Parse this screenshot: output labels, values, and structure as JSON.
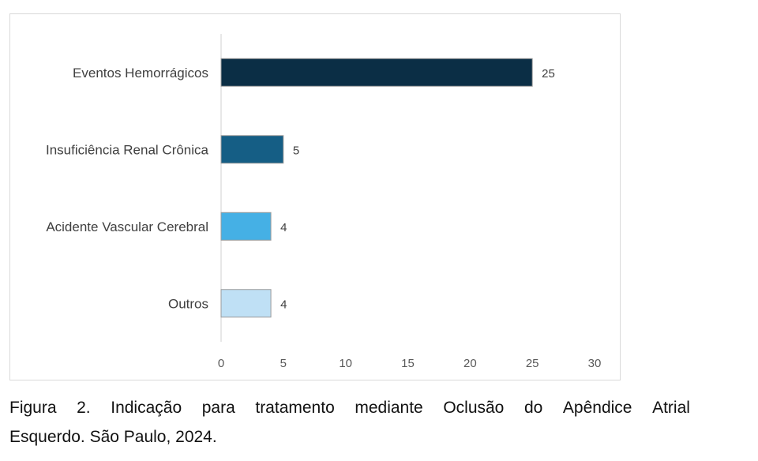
{
  "chart_data": {
    "type": "bar",
    "orientation": "horizontal",
    "categories": [
      "Eventos Hemorrágicos",
      "Insuficiência Renal Crônica",
      "Acidente Vascular Cerebral",
      "Outros"
    ],
    "values": [
      25,
      5,
      4,
      4
    ],
    "colors": [
      "#0b2e45",
      "#155e85",
      "#45b0e5",
      "#bfe0f5"
    ],
    "xlim": [
      0,
      30
    ],
    "xticks": [
      0,
      5,
      10,
      15,
      20,
      25,
      30
    ],
    "grid": false,
    "legend": "none"
  },
  "caption": {
    "line1_words": [
      "Figura",
      "2.",
      "Indicação",
      "para",
      "tratamento",
      "mediante",
      "Oclusão",
      "do",
      "Apêndice",
      "Atrial"
    ],
    "line2": "Esquerdo. São Paulo, 2024."
  }
}
